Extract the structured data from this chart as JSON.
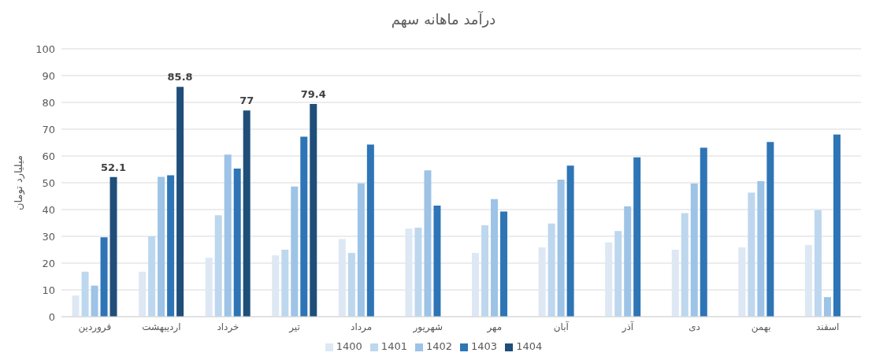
{
  "chart_data": {
    "type": "bar",
    "title": "درآمد ماهانه سهم",
    "ylabel": "میلیارد تومان",
    "categories": [
      "فروردین",
      "اردیبهشت",
      "خرداد",
      "تیر",
      "مرداد",
      "شهریور",
      "مهر",
      "آبان",
      "آذر",
      "دی",
      "بهمن",
      "اسفند"
    ],
    "series": [
      {
        "name": "1400",
        "color": "#dde8f4",
        "values": [
          7.9,
          16.8,
          22,
          22.9,
          29,
          32.9,
          23.8,
          25.9,
          27.7,
          25,
          25.9,
          26.8
        ]
      },
      {
        "name": "1401",
        "color": "#bdd7ee",
        "values": [
          16.8,
          30,
          37.9,
          25,
          23.8,
          33.2,
          34.1,
          34.8,
          32,
          38.7,
          46.3,
          39.8
        ]
      },
      {
        "name": "1402",
        "color": "#9dc3e6",
        "values": [
          11.6,
          52.2,
          60.5,
          48.6,
          49.8,
          54.6,
          43.9,
          51.2,
          41.2,
          49.7,
          50.6,
          7.3
        ]
      },
      {
        "name": "1403",
        "color": "#2e75b6",
        "values": [
          29.6,
          52.8,
          55.3,
          67.2,
          64.3,
          41.5,
          39.3,
          56.4,
          59.5,
          63.1,
          65.2,
          68
        ]
      },
      {
        "name": "1404",
        "color": "#1f4e79",
        "values": [
          52.1,
          85.8,
          77,
          79.4,
          null,
          null,
          null,
          null,
          null,
          null,
          null,
          null
        ],
        "value_labels": [
          "52.1",
          "85.8",
          "77",
          "79.4",
          null,
          null,
          null,
          null,
          null,
          null,
          null,
          null
        ]
      }
    ],
    "ylim": [
      0,
      100
    ],
    "yticks": [
      0,
      10,
      20,
      30,
      40,
      50,
      60,
      70,
      80,
      90,
      100
    ],
    "grid": "y",
    "legend": "bottom"
  }
}
